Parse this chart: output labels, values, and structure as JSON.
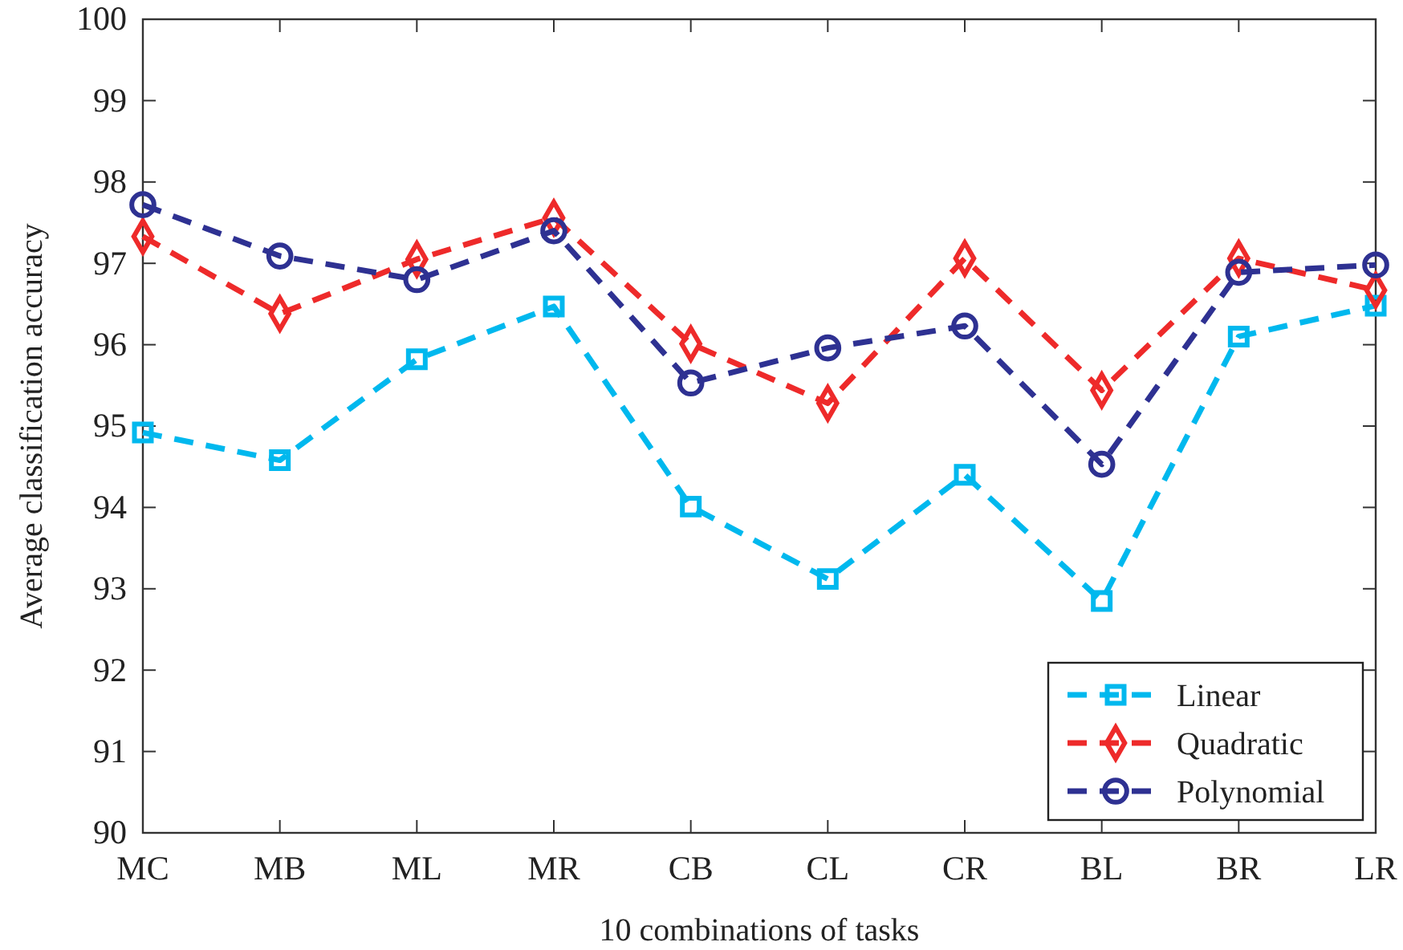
{
  "chart_data": {
    "type": "line",
    "xlabel": "10 combinations of tasks",
    "ylabel": "Average classification accuracy",
    "categories": [
      "MC",
      "MB",
      "ML",
      "MR",
      "CB",
      "CL",
      "CR",
      "BL",
      "BR",
      "LR"
    ],
    "ylim": [
      90,
      100
    ],
    "yticks": [
      90,
      91,
      92,
      93,
      94,
      95,
      96,
      97,
      98,
      99,
      100
    ],
    "grid": false,
    "legend": "bottom right",
    "line_style": "dashed",
    "series": [
      {
        "name": "Linear",
        "color": "#00b8ee",
        "marker": "square",
        "values": [
          94.92,
          94.58,
          95.82,
          96.47,
          94.01,
          93.12,
          94.4,
          92.85,
          96.1,
          96.48
        ]
      },
      {
        "name": "Quadratic",
        "color": "#ee2a2a",
        "marker": "diamond",
        "values": [
          97.33,
          96.38,
          97.05,
          97.56,
          96.01,
          95.28,
          97.06,
          95.44,
          97.06,
          96.67
        ]
      },
      {
        "name": "Polynomial",
        "color": "#2e3192",
        "marker": "circle",
        "values": [
          97.72,
          97.09,
          96.8,
          97.4,
          95.53,
          95.96,
          96.23,
          94.53,
          96.89,
          96.98
        ]
      }
    ]
  }
}
